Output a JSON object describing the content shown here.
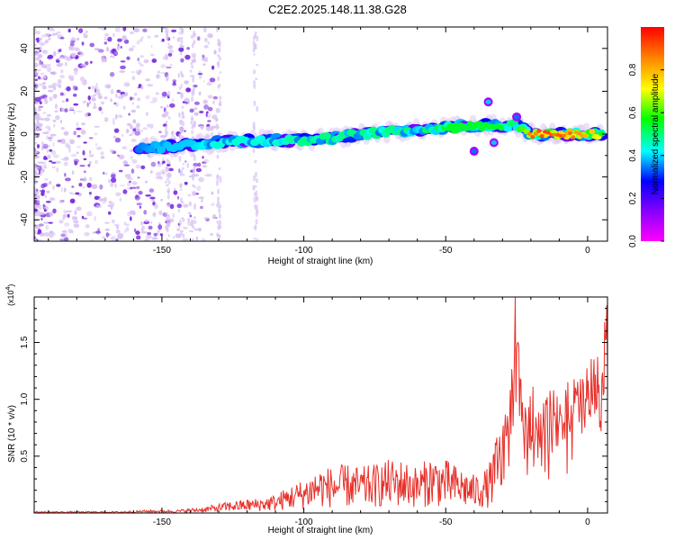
{
  "title": "C2E2.2025.148.11.38.G28",
  "colors": {
    "trace": "#e8302a",
    "speckle_light": "#d9c3f3",
    "speckle_dark": "#7a2ee0",
    "axis": "#000000"
  },
  "chart_data": [
    {
      "type": "heatmap",
      "xlabel": "Height of straight line (km)",
      "ylabel": "Frequency (Hz)",
      "xlim": [
        -195,
        7
      ],
      "ylim": [
        -50,
        50
      ],
      "x_ticks": [
        -150,
        -100,
        -50,
        0
      ],
      "y_ticks": [
        -40,
        -20,
        0,
        20,
        40
      ],
      "colorbar": {
        "label": "Normalized spectral amplitude",
        "range": [
          0,
          1
        ],
        "ticks": [
          "0.0",
          "0.2",
          "0.4",
          "0.6",
          "0.8"
        ],
        "colormap": [
          "#ff00ff",
          "#8800ff",
          "#0000ff",
          "#00ffff",
          "#00ff00",
          "#ffff00",
          "#ff8800",
          "#ff0000"
        ]
      },
      "ridge": {
        "x": [
          -158,
          -150,
          -140,
          -130,
          -120,
          -110,
          -100,
          -90,
          -80,
          -70,
          -60,
          -50,
          -40,
          -30,
          -25,
          -20,
          -10,
          0,
          5
        ],
        "frequency": [
          -6,
          -6,
          -5,
          -4,
          -3,
          -3,
          -3,
          -2,
          0,
          1,
          2,
          3,
          4,
          4,
          4,
          0,
          0,
          0,
          0
        ],
        "amplitude": [
          0.35,
          0.4,
          0.4,
          0.45,
          0.45,
          0.45,
          0.5,
          0.5,
          0.5,
          0.5,
          0.5,
          0.55,
          0.55,
          0.55,
          0.5,
          0.9,
          0.95,
          0.8,
          0.7
        ]
      }
    },
    {
      "type": "line",
      "xlabel": "Height of straight line (km)",
      "ylabel": "SNR (10 * v/v)",
      "y_multiplier": "(x10",
      "y_multiplier_exp": "4",
      "y_multiplier_close": ")",
      "xlim": [
        -195,
        7
      ],
      "ylim": [
        0,
        1.9
      ],
      "x_ticks": [
        -150,
        -100,
        -50,
        0
      ],
      "y_ticks": [
        "0.5",
        "1.0",
        "1.5"
      ],
      "series": [
        {
          "x": [
            -195,
            -185,
            -175,
            -165,
            -155,
            -145,
            -140,
            -135,
            -130,
            -125,
            -120,
            -115,
            -110,
            -105,
            -100,
            -95,
            -90,
            -85,
            -80,
            -75,
            -70,
            -65,
            -60,
            -55,
            -50,
            -45,
            -40,
            -35,
            -30,
            -27,
            -25,
            -22,
            -20,
            -15,
            -10,
            -5,
            0,
            5,
            7
          ],
          "y": [
            0.01,
            0.01,
            0.01,
            0.01,
            0.02,
            0.02,
            0.03,
            0.04,
            0.06,
            0.08,
            0.09,
            0.1,
            0.12,
            0.18,
            0.22,
            0.3,
            0.3,
            0.32,
            0.3,
            0.32,
            0.35,
            0.35,
            0.3,
            0.38,
            0.35,
            0.3,
            0.25,
            0.3,
            0.65,
            1.2,
            1.5,
            0.9,
            1.0,
            0.95,
            0.95,
            1.05,
            1.15,
            1.3,
            1.65
          ]
        }
      ]
    }
  ]
}
